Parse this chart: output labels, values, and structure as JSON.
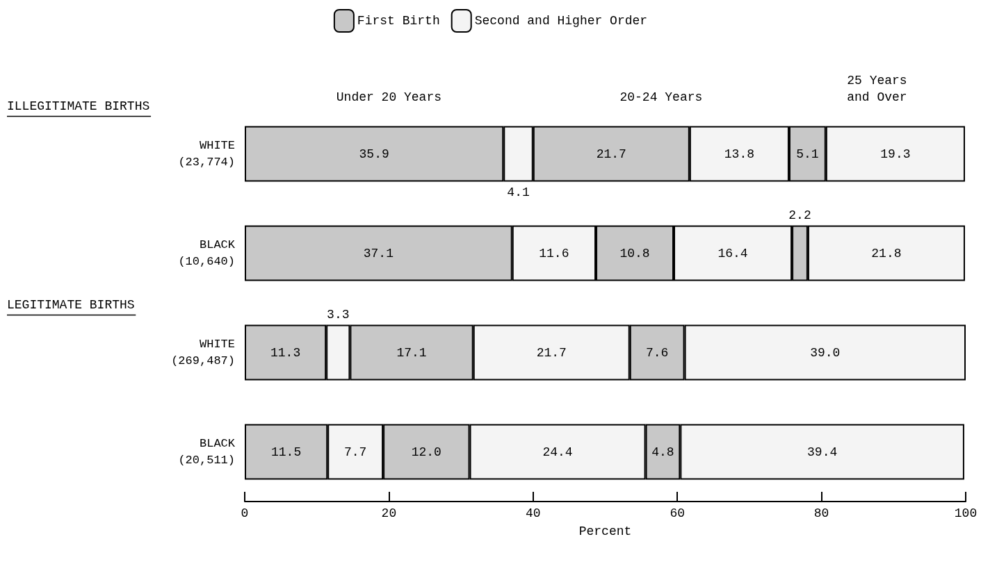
{
  "chart_data": {
    "type": "bar",
    "orientation": "horizontal",
    "stacked": true,
    "categories": [
      "WHITE\n(23,774)",
      "BLACK\n(10,640)",
      "WHITE\n(269,487)",
      "BLACK\n(20,511)"
    ],
    "series": [
      {
        "name": "First Birth",
        "color": "#c8c8c8",
        "values": [
          35.9,
          37.1,
          11.3,
          11.5
        ],
        "value_labels": [
          "35.9",
          "37.1",
          "11.3",
          "11.5"
        ]
      },
      {
        "name": "Second and Higher Order",
        "color": "#f4f4f4",
        "values": [
          4.1,
          11.6,
          3.3,
          7.7
        ],
        "value_labels": [
          "4.1",
          "11.6",
          "3.3",
          "7.7"
        ]
      },
      {
        "color": "#c8c8c8",
        "values": [
          21.7,
          10.8,
          17.1,
          12.0
        ],
        "value_labels": [
          "21.7",
          "10.8",
          "17.1",
          "12.0"
        ]
      },
      {
        "color": "#f4f4f4",
        "values": [
          13.8,
          16.4,
          21.7,
          24.4
        ],
        "value_labels": [
          "13.8",
          "16.4",
          "21.7",
          "24.4"
        ]
      },
      {
        "color": "#c8c8c8",
        "values": [
          5.1,
          2.2,
          7.6,
          4.8
        ],
        "value_labels": [
          "5.1",
          "2.2",
          "7.6",
          "4.8"
        ]
      },
      {
        "color": "#f4f4f4",
        "values": [
          19.3,
          21.8,
          39.0,
          39.4
        ],
        "value_labels": [
          "19.3",
          "21.8",
          "39.0",
          "39.4"
        ]
      }
    ],
    "xlim": [
      0,
      100
    ],
    "xticks": [
      0,
      20,
      40,
      60,
      80,
      100
    ],
    "xlabel": "Percent",
    "grid": false,
    "legend": "top",
    "annotations": [
      "ILLEGITIMATE BIRTHS",
      "LEGITIMATE BIRTHS",
      "Under 20 Years",
      "20-24 Years",
      "25 Years and Over"
    ]
  }
}
